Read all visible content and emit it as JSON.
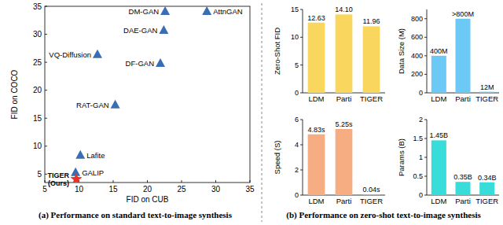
{
  "chart_data": [
    {
      "type": "scatter",
      "x_label": "FID on CUB",
      "y_label": "FID on COCO",
      "xlim": [
        5,
        35
      ],
      "xticks": [
        5,
        10,
        15,
        20,
        25,
        30,
        35
      ],
      "ylim": [
        3.5,
        35
      ],
      "yticks": [
        5,
        10,
        15,
        20,
        25,
        30,
        35
      ],
      "grid": false,
      "series": [
        {
          "name": "AttnGAN",
          "x": [
            28.7
          ],
          "values": [
            34.1
          ],
          "color": "#3a6db1",
          "marker": "triangle"
        },
        {
          "name": "DM-GAN",
          "x": [
            22.6
          ],
          "values": [
            34.1
          ],
          "color": "#3a6db1",
          "marker": "triangle"
        },
        {
          "name": "DAE-GAN",
          "x": [
            22.4
          ],
          "values": [
            30.7
          ],
          "color": "#3a6db1",
          "marker": "triangle"
        },
        {
          "name": "VQ-Diffusion",
          "x": [
            12.7
          ],
          "values": [
            26.4
          ],
          "color": "#3a6db1",
          "marker": "triangle"
        },
        {
          "name": "DF-GAN",
          "x": [
            21.9
          ],
          "values": [
            24.8
          ],
          "color": "#3a6db1",
          "marker": "triangle"
        },
        {
          "name": "RAT-GAN",
          "x": [
            15.3
          ],
          "values": [
            17.4
          ],
          "color": "#3a6db1",
          "marker": "triangle"
        },
        {
          "name": "Lafite",
          "x": [
            10.2
          ],
          "values": [
            8.4
          ],
          "color": "#3a6db1",
          "marker": "triangle"
        },
        {
          "name": "GALIP",
          "x": [
            9.5
          ],
          "values": [
            5.3
          ],
          "color": "#3a6db1",
          "marker": "triangle"
        },
        {
          "name": "TIGER (Ours)",
          "x": [
            9.6
          ],
          "values": [
            4.1
          ],
          "color": "#e8322a",
          "marker": "star"
        }
      ]
    },
    {
      "type": "bar",
      "y_label": "Zero-Shot FID",
      "categories": [
        "LDM",
        "Parti",
        "TIGER"
      ],
      "values": [
        12.63,
        14.1,
        11.96
      ],
      "value_labels": [
        "12.63",
        "14.10",
        "11.96"
      ],
      "color": "#f9d65e",
      "ylim": [
        0,
        15
      ],
      "yticks": [
        0,
        5,
        10,
        15
      ],
      "data_labels": true
    },
    {
      "type": "bar",
      "y_label": "Data Size (M)",
      "categories": [
        "LDM",
        "Parti",
        "TIGER"
      ],
      "values": [
        400,
        800,
        12
      ],
      "value_labels": [
        "400M",
        ">800M",
        "12M"
      ],
      "color": "#6cc9f5",
      "ylim": [
        0,
        900
      ],
      "yticks": [
        0,
        200,
        400,
        600,
        800
      ],
      "data_labels": true
    },
    {
      "type": "bar",
      "y_label": "Speed (S)",
      "categories": [
        "LDM",
        "Parti",
        "TIGER"
      ],
      "values": [
        4.83,
        5.25,
        0.04
      ],
      "value_labels": [
        "4.83s",
        "5.25s",
        "0.04s"
      ],
      "color": "#f6ad82",
      "ylim": [
        0,
        6
      ],
      "yticks": [
        0,
        2,
        4,
        6
      ],
      "data_labels": true
    },
    {
      "type": "bar",
      "y_label": "Params (B)",
      "categories": [
        "LDM",
        "Parti",
        "TIGER"
      ],
      "values": [
        1.45,
        0.35,
        0.34
      ],
      "value_labels": [
        "1.45B",
        "0.35B",
        "0.34B"
      ],
      "color": "#38dcd8",
      "ylim": [
        0,
        2
      ],
      "yticks": [
        0,
        0.5,
        1,
        1.5,
        2
      ],
      "data_labels": true
    }
  ],
  "captions": [
    "(a) Performance on standard text-to-image synthesis",
    "(b) Performance on zero-shot text-to-image synthesis"
  ]
}
